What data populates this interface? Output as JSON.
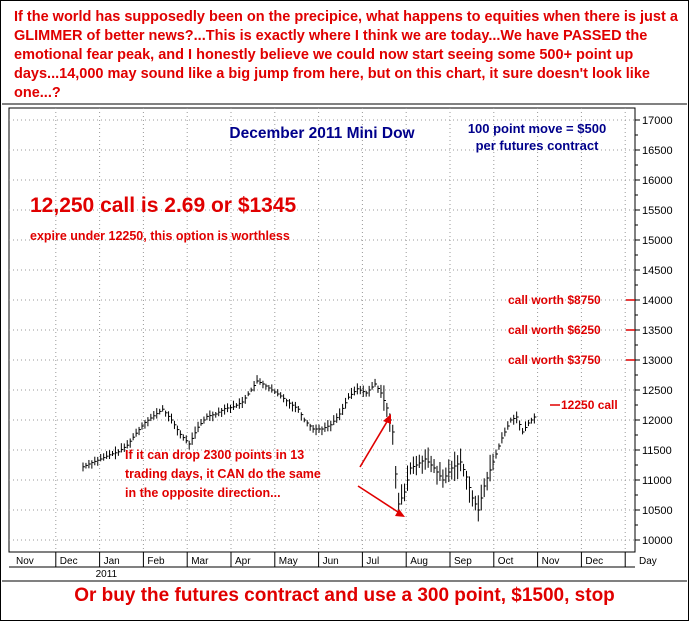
{
  "header": {
    "text": "If the world has supposedly been on the precipice, what happens to equities when there is just a GLIMMER of better news?...This is exactly where I think we are today...We have PASSED the emotional fear peak, and I honestly believe we could now start seeing some 500+ point up days...14,000 may sound like a big jump from here, but on this chart, it sure doesn't look like one...?"
  },
  "footer": {
    "text": "Or buy the futures contract and use a 300 point, $1500, stop"
  },
  "colors": {
    "annotation_red": "#e00000",
    "title_blue": "#00008b",
    "bars": "#000000"
  },
  "chart_data": {
    "type": "ohlc",
    "title": "December 2011 Mini Dow",
    "note": "100 point move = $500 per futures contract",
    "callout_big": "12,250 call is 2.69 or $1345",
    "callout_small": "expire under 12250, this option is worthless",
    "levels": [
      {
        "value": 14000,
        "label": "call worth $8750"
      },
      {
        "value": 13500,
        "label": "call worth $6250"
      },
      {
        "value": 13000,
        "label": "call worth $3750"
      },
      {
        "value": 12250,
        "label": "12250 call"
      }
    ],
    "annotation": "If it can drop 2300 points in 13 trading days, it CAN do the same in the opposite direction...",
    "y_ticks": [
      10000,
      10500,
      11000,
      11500,
      12000,
      12500,
      13000,
      13500,
      14000,
      14500,
      15000,
      15500,
      16000,
      16500,
      17000
    ],
    "ylim": [
      9900,
      17200
    ],
    "x_months": [
      "Nov",
      "Dec",
      "Jan",
      "Feb",
      "Mar",
      "Apr",
      "May",
      "Jun",
      "Jul",
      "Aug",
      "Sep",
      "Oct",
      "Nov",
      "Dec"
    ],
    "year_label": "2011",
    "x_unit_label": "Day",
    "price_path": [
      [
        0,
        11220
      ],
      [
        3,
        11290
      ],
      [
        6,
        11350
      ],
      [
        9,
        11420
      ],
      [
        12,
        11470
      ],
      [
        15,
        11580
      ],
      [
        18,
        11780
      ],
      [
        21,
        11960
      ],
      [
        24,
        12070
      ],
      [
        27,
        12180
      ],
      [
        30,
        12000
      ],
      [
        33,
        11760
      ],
      [
        36,
        11600
      ],
      [
        39,
        11880
      ],
      [
        42,
        12060
      ],
      [
        45,
        12100
      ],
      [
        48,
        12190
      ],
      [
        51,
        12220
      ],
      [
        54,
        12300
      ],
      [
        57,
        12500
      ],
      [
        59,
        12650
      ],
      [
        61,
        12600
      ],
      [
        64,
        12500
      ],
      [
        67,
        12400
      ],
      [
        70,
        12280
      ],
      [
        73,
        12180
      ],
      [
        75,
        12000
      ],
      [
        78,
        11850
      ],
      [
        81,
        11850
      ],
      [
        84,
        11920
      ],
      [
        87,
        12100
      ],
      [
        90,
        12380
      ],
      [
        93,
        12520
      ],
      [
        96,
        12450
      ],
      [
        99,
        12600
      ],
      [
        101,
        12450
      ],
      [
        103,
        12200
      ],
      [
        105,
        11800
      ],
      [
        106,
        11100
      ],
      [
        107,
        10600
      ],
      [
        109,
        10800
      ],
      [
        111,
        11200
      ],
      [
        113,
        11250
      ],
      [
        116,
        11350
      ],
      [
        119,
        11200
      ],
      [
        122,
        11000
      ],
      [
        125,
        11200
      ],
      [
        128,
        11300
      ],
      [
        130,
        11050
      ],
      [
        132,
        10700
      ],
      [
        134,
        10500
      ],
      [
        136,
        10900
      ],
      [
        139,
        11300
      ],
      [
        142,
        11700
      ],
      [
        145,
        12000
      ],
      [
        147,
        12050
      ],
      [
        149,
        11800
      ],
      [
        151,
        11950
      ],
      [
        153,
        12050
      ]
    ],
    "price_path_units": "[trading day index, price]"
  }
}
